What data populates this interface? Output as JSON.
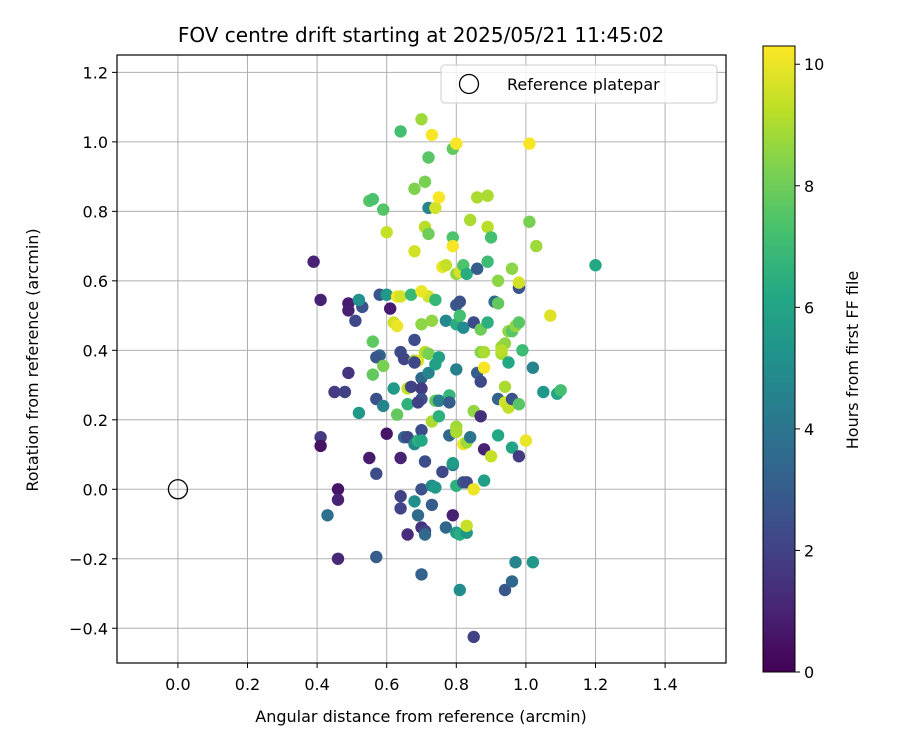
{
  "chart_data": {
    "type": "scatter",
    "title": "FOV centre drift starting at 2025/05/21 11:45:02",
    "xlabel": "Angular distance from reference (arcmin)",
    "ylabel": "Rotation from reference (arcmin)",
    "xlim": [
      -0.175,
      1.575
    ],
    "ylim": [
      -0.5,
      1.25
    ],
    "xticks": [
      0.0,
      0.2,
      0.4,
      0.6,
      0.8,
      1.0,
      1.2,
      1.4
    ],
    "yticks": [
      -0.4,
      -0.2,
      0.0,
      0.2,
      0.4,
      0.6,
      0.8,
      1.0,
      1.2
    ],
    "grid": true,
    "legend": {
      "placement": "upper right",
      "entries": [
        {
          "label": "Reference platepar",
          "marker": "open-circle"
        }
      ]
    },
    "reference_point": {
      "x": 0.0,
      "y": 0.0
    },
    "colorbar": {
      "label": "Hours from first FF file",
      "colormap": "viridis",
      "range": [
        0,
        10.3
      ],
      "ticks": [
        0,
        2,
        4,
        6,
        8,
        10
      ]
    },
    "points": [
      [
        0.39,
        0.655,
        1.0
      ],
      [
        0.41,
        0.545,
        1.0
      ],
      [
        0.49,
        0.535,
        0.8
      ],
      [
        0.49,
        0.515,
        0.9
      ],
      [
        0.49,
        0.335,
        1.5
      ],
      [
        0.45,
        0.28,
        1.8
      ],
      [
        0.48,
        0.28,
        2.0
      ],
      [
        0.41,
        0.15,
        1.8
      ],
      [
        0.41,
        0.125,
        0.5
      ],
      [
        0.46,
        0.0,
        0.6
      ],
      [
        0.46,
        -0.03,
        1.0
      ],
      [
        0.43,
        -0.075,
        3.8
      ],
      [
        0.46,
        -0.2,
        1.2
      ],
      [
        0.51,
        0.485,
        2.2
      ],
      [
        0.53,
        0.525,
        2.6
      ],
      [
        0.52,
        0.545,
        5.2
      ],
      [
        0.55,
        0.83,
        7.6
      ],
      [
        0.56,
        0.835,
        7.3
      ],
      [
        0.59,
        0.805,
        7.5
      ],
      [
        0.6,
        0.74,
        9.4
      ],
      [
        0.55,
        0.09,
        0.8
      ],
      [
        0.57,
        0.045,
        2.4
      ],
      [
        0.57,
        -0.195,
        3.0
      ],
      [
        0.52,
        0.22,
        5.5
      ],
      [
        0.56,
        0.33,
        7.8
      ],
      [
        0.56,
        0.425,
        7.7
      ],
      [
        0.58,
        0.385,
        3.3
      ],
      [
        0.57,
        0.38,
        2.8
      ],
      [
        0.59,
        0.355,
        8.2
      ],
      [
        0.57,
        0.26,
        2.5
      ],
      [
        0.59,
        0.24,
        4.6
      ],
      [
        0.6,
        0.16,
        0.6
      ],
      [
        0.58,
        0.56,
        2.7
      ],
      [
        0.6,
        0.56,
        5.5
      ],
      [
        0.61,
        0.52,
        0.8
      ],
      [
        0.62,
        0.48,
        9.6
      ],
      [
        0.63,
        0.47,
        10.0
      ],
      [
        0.63,
        0.555,
        10.2
      ],
      [
        0.64,
        0.555,
        9.6
      ],
      [
        0.62,
        0.29,
        5.6
      ],
      [
        0.63,
        0.215,
        7.8
      ],
      [
        0.64,
        0.09,
        1.0
      ],
      [
        0.64,
        -0.02,
        2.0
      ],
      [
        0.64,
        -0.055,
        2.1
      ],
      [
        0.66,
        -0.13,
        1.3
      ],
      [
        0.64,
        1.03,
        7.2
      ],
      [
        0.64,
        0.395,
        2.3
      ],
      [
        0.65,
        0.375,
        2.1
      ],
      [
        0.65,
        0.15,
        3.3
      ],
      [
        0.66,
        0.15,
        2.3
      ],
      [
        0.66,
        0.245,
        6.6
      ],
      [
        0.66,
        0.29,
        9.4
      ],
      [
        0.67,
        0.56,
        6.9
      ],
      [
        0.68,
        0.865,
        8.3
      ],
      [
        0.68,
        0.685,
        9.6
      ],
      [
        0.68,
        0.37,
        8.8
      ],
      [
        0.69,
        0.37,
        9.8
      ],
      [
        0.68,
        0.365,
        2.2
      ],
      [
        0.67,
        0.295,
        2.0
      ],
      [
        0.68,
        0.43,
        2.4
      ],
      [
        0.68,
        0.13,
        4.8
      ],
      [
        0.69,
        0.14,
        6.5
      ],
      [
        0.68,
        -0.035,
        5.1
      ],
      [
        0.69,
        -0.075,
        3.6
      ],
      [
        0.7,
        0.0,
        2.6
      ],
      [
        0.7,
        -0.11,
        1.5
      ],
      [
        0.71,
        -0.12,
        2.0
      ],
      [
        0.71,
        -0.13,
        3.5
      ],
      [
        0.7,
        -0.245,
        3.2
      ],
      [
        0.7,
        1.065,
        8.8
      ],
      [
        0.71,
        0.755,
        9.2
      ],
      [
        0.72,
        0.735,
        8.0
      ],
      [
        0.71,
        0.885,
        8.2
      ],
      [
        0.72,
        0.955,
        7.6
      ],
      [
        0.72,
        0.81,
        4.6
      ],
      [
        0.72,
        0.555,
        9.6
      ],
      [
        0.7,
        0.57,
        10.0
      ],
      [
        0.7,
        0.475,
        8.5
      ],
      [
        0.71,
        0.395,
        9.2
      ],
      [
        0.72,
        0.39,
        8.2
      ],
      [
        0.7,
        0.32,
        3.5
      ],
      [
        0.72,
        0.335,
        4.6
      ],
      [
        0.7,
        0.29,
        1.8
      ],
      [
        0.7,
        0.26,
        2.5
      ],
      [
        0.69,
        0.25,
        2.0
      ],
      [
        0.7,
        0.17,
        2.4
      ],
      [
        0.7,
        0.14,
        6.2
      ],
      [
        0.71,
        0.08,
        2.4
      ],
      [
        0.73,
        1.02,
        10.2
      ],
      [
        0.74,
        0.81,
        9.6
      ],
      [
        0.75,
        0.84,
        10.2
      ],
      [
        0.74,
        0.545,
        6.8
      ],
      [
        0.73,
        0.485,
        8.6
      ],
      [
        0.74,
        0.255,
        7.8
      ],
      [
        0.75,
        0.255,
        4.4
      ],
      [
        0.73,
        0.195,
        9.0
      ],
      [
        0.74,
        0.36,
        5.8
      ],
      [
        0.75,
        0.38,
        5.8
      ],
      [
        0.73,
        0.01,
        4.8
      ],
      [
        0.74,
        0.005,
        5.5
      ],
      [
        0.73,
        -0.045,
        3.0
      ],
      [
        0.75,
        0.21,
        6.5
      ],
      [
        0.76,
        0.64,
        10.0
      ],
      [
        0.77,
        0.645,
        9.4
      ],
      [
        0.77,
        0.485,
        4.8
      ],
      [
        0.76,
        0.05,
        2.2
      ],
      [
        0.77,
        -0.11,
        3.4
      ],
      [
        0.78,
        0.27,
        6.8
      ],
      [
        0.78,
        0.25,
        3.0
      ],
      [
        0.78,
        0.155,
        3.4
      ],
      [
        0.79,
        0.07,
        4.0
      ],
      [
        0.79,
        0.725,
        7.4
      ],
      [
        0.79,
        0.98,
        7.8
      ],
      [
        0.8,
        0.995,
        10.2
      ],
      [
        0.79,
        0.7,
        10.2
      ],
      [
        0.8,
        0.62,
        8.6
      ],
      [
        0.8,
        0.53,
        2.8
      ],
      [
        0.81,
        0.54,
        2.6
      ],
      [
        0.8,
        0.475,
        6.4
      ],
      [
        0.81,
        0.5,
        7.2
      ],
      [
        0.8,
        0.345,
        4.4
      ],
      [
        0.8,
        0.18,
        8.8
      ],
      [
        0.8,
        0.165,
        9.0
      ],
      [
        0.79,
        0.075,
        5.6
      ],
      [
        0.8,
        0.01,
        6.5
      ],
      [
        0.79,
        -0.075,
        0.9
      ],
      [
        0.8,
        -0.125,
        5.6
      ],
      [
        0.81,
        -0.13,
        6.4
      ],
      [
        0.81,
        -0.29,
        5.0
      ],
      [
        0.81,
        0.625,
        9.6
      ],
      [
        0.82,
        0.645,
        7.4
      ],
      [
        0.83,
        0.62,
        6.4
      ],
      [
        0.82,
        0.465,
        5.0
      ],
      [
        0.82,
        0.13,
        10.0
      ],
      [
        0.83,
        0.135,
        8.8
      ],
      [
        0.82,
        0.02,
        2.8
      ],
      [
        0.83,
        0.02,
        2.2
      ],
      [
        0.83,
        -0.125,
        5.4
      ],
      [
        0.83,
        -0.105,
        9.4
      ],
      [
        0.84,
        0.775,
        9.0
      ],
      [
        0.85,
        0.48,
        2.4
      ],
      [
        0.84,
        0.15,
        4.0
      ],
      [
        0.85,
        0.0,
        10.0
      ],
      [
        0.85,
        0.225,
        8.6
      ],
      [
        0.85,
        -0.425,
        2.0
      ],
      [
        0.86,
        0.84,
        9.0
      ],
      [
        0.86,
        0.635,
        3.0
      ],
      [
        0.86,
        0.335,
        3.0
      ],
      [
        0.87,
        0.31,
        2.3
      ],
      [
        0.87,
        0.46,
        8.0
      ],
      [
        0.87,
        0.395,
        8.4
      ],
      [
        0.87,
        0.21,
        1.4
      ],
      [
        0.88,
        0.395,
        9.0
      ],
      [
        0.88,
        0.35,
        10.2
      ],
      [
        0.88,
        0.115,
        1.0
      ],
      [
        0.88,
        0.025,
        5.8
      ],
      [
        0.89,
        0.755,
        9.2
      ],
      [
        0.89,
        0.845,
        9.0
      ],
      [
        0.89,
        0.655,
        7.0
      ],
      [
        0.89,
        0.48,
        6.5
      ],
      [
        0.9,
        0.095,
        9.4
      ],
      [
        0.9,
        0.725,
        7.2
      ],
      [
        0.91,
        0.54,
        3.6
      ],
      [
        0.92,
        0.535,
        7.8
      ],
      [
        0.92,
        0.6,
        8.5
      ],
      [
        0.92,
        0.26,
        3.2
      ],
      [
        0.92,
        0.155,
        6.2
      ],
      [
        0.93,
        0.39,
        9.0
      ],
      [
        0.93,
        0.41,
        8.8
      ],
      [
        0.94,
        0.42,
        8.6
      ],
      [
        0.93,
        0.4,
        9.2
      ],
      [
        0.94,
        0.25,
        9.6
      ],
      [
        0.95,
        0.455,
        8.6
      ],
      [
        0.94,
        0.295,
        9.0
      ],
      [
        0.95,
        0.365,
        6.2
      ],
      [
        0.95,
        0.235,
        9.4
      ],
      [
        0.94,
        -0.29,
        2.8
      ],
      [
        0.96,
        0.635,
        8.5
      ],
      [
        0.96,
        0.455,
        7.6
      ],
      [
        0.96,
        0.26,
        2.6
      ],
      [
        0.96,
        0.12,
        6.0
      ],
      [
        0.96,
        -0.265,
        3.4
      ],
      [
        0.97,
        0.47,
        8.6
      ],
      [
        0.98,
        0.48,
        7.6
      ],
      [
        0.97,
        -0.21,
        4.6
      ],
      [
        0.98,
        0.58,
        2.6
      ],
      [
        0.98,
        0.595,
        9.6
      ],
      [
        0.98,
        0.245,
        7.6
      ],
      [
        0.99,
        0.4,
        7.0
      ],
      [
        0.98,
        0.095,
        1.8
      ],
      [
        1.0,
        0.14,
        10.0
      ],
      [
        1.01,
        0.995,
        10.2
      ],
      [
        1.01,
        0.77,
        8.2
      ],
      [
        1.02,
        0.35,
        4.6
      ],
      [
        1.02,
        -0.21,
        5.4
      ],
      [
        1.03,
        0.7,
        8.8
      ],
      [
        1.05,
        0.28,
        5.4
      ],
      [
        1.07,
        0.5,
        9.8
      ],
      [
        1.09,
        0.275,
        6.0
      ],
      [
        1.1,
        0.285,
        7.2
      ],
      [
        1.2,
        0.645,
        6.2
      ]
    ]
  }
}
